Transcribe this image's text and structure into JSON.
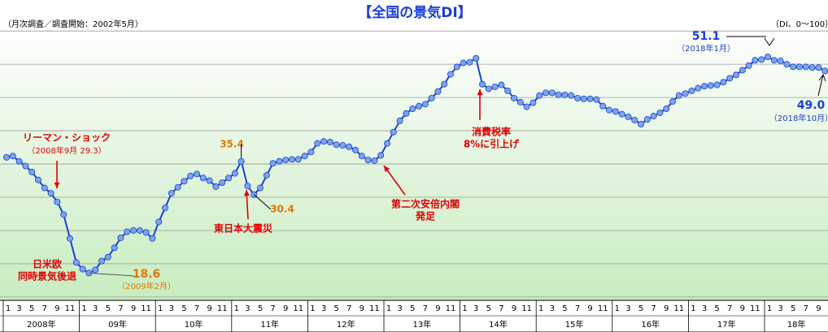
{
  "chart_data": {
    "type": "line",
    "title": "【全国の景気DI】",
    "subtitle": "（月次調査／調査開始：2002年5月）",
    "unit_note": "（DI、0～100）",
    "categories": [
      1,
      null,
      3,
      null,
      5,
      null,
      7,
      null,
      9,
      null,
      11,
      null,
      1,
      null,
      3,
      null,
      5,
      null,
      7,
      null,
      9,
      null,
      11,
      null,
      1,
      null,
      3,
      null,
      5,
      null,
      7,
      null,
      9,
      null,
      11,
      null,
      1,
      null,
      3,
      null,
      5,
      null,
      7,
      null,
      9,
      null,
      11,
      null,
      1,
      null,
      3,
      null,
      5,
      null,
      7,
      null,
      9,
      null,
      11,
      null,
      1,
      null,
      3,
      null,
      5,
      null,
      7,
      null,
      9,
      null,
      11,
      null,
      1,
      null,
      3,
      null,
      5,
      null,
      7,
      null,
      9,
      null,
      11,
      null,
      1,
      null,
      3,
      null,
      5,
      null,
      7,
      null,
      9,
      null,
      11,
      null,
      1,
      null,
      3,
      null,
      5,
      null,
      7,
      null,
      9,
      null,
      11,
      null,
      1,
      null,
      3,
      null,
      5,
      null,
      7,
      null,
      9,
      null,
      11,
      null,
      1,
      null,
      3,
      null,
      5,
      null,
      7,
      null,
      9,
      null
    ],
    "years": [
      "2008年",
      "09年",
      "10年",
      "11年",
      "12年",
      "13年",
      "14年",
      "15年",
      "16年",
      "17年",
      "18年"
    ],
    "values": [
      36.0,
      36.2,
      35.4,
      34.7,
      33.8,
      32.6,
      31.4,
      30.6,
      29.3,
      27.4,
      23.8,
      20.2,
      19.2,
      18.6,
      19.1,
      20.4,
      21.0,
      22.4,
      23.9,
      24.8,
      25.0,
      25.0,
      24.7,
      23.8,
      26.3,
      28.4,
      30.6,
      31.5,
      32.4,
      33.2,
      33.5,
      32.9,
      32.5,
      31.6,
      32.2,
      32.9,
      33.6,
      35.4,
      31.7,
      30.4,
      31.4,
      33.3,
      35.1,
      35.4,
      35.6,
      35.7,
      35.7,
      36.2,
      36.8,
      38.1,
      38.4,
      38.3,
      37.9,
      37.8,
      37.6,
      37.1,
      36.2,
      35.6,
      35.5,
      36.3,
      38.1,
      39.8,
      41.5,
      42.6,
      43.3,
      43.7,
      44.0,
      44.9,
      45.9,
      47.0,
      48.5,
      49.6,
      50.2,
      50.3,
      50.9,
      47.0,
      46.3,
      46.6,
      46.9,
      46.0,
      44.9,
      44.3,
      43.6,
      44.2,
      45.3,
      45.7,
      45.7,
      45.4,
      45.4,
      45.3,
      44.9,
      44.8,
      44.8,
      44.7,
      43.7,
      43.1,
      42.9,
      42.5,
      42.1,
      41.6,
      41.0,
      41.7,
      42.2,
      42.7,
      43.3,
      44.4,
      45.3,
      45.6,
      46.0,
      46.4,
      46.7,
      46.8,
      46.9,
      47.3,
      47.9,
      48.4,
      49.1,
      49.8,
      50.6,
      50.7,
      51.1,
      50.6,
      50.5,
      50.0,
      49.6,
      49.6,
      49.6,
      49.5,
      49.5,
      49.0
    ],
    "value_labels": [
      null,
      null,
      null,
      null,
      null,
      null,
      null,
      null,
      null,
      null,
      null,
      null,
      null,
      "18.6",
      null,
      null,
      null,
      null,
      null,
      null,
      null,
      null,
      null,
      null,
      null,
      null,
      null,
      null,
      null,
      null,
      null,
      null,
      null,
      null,
      null,
      null,
      null,
      "35.4",
      null,
      "30.4",
      null,
      null,
      null,
      null,
      null,
      null,
      null,
      null,
      null,
      null,
      null,
      null,
      null,
      null,
      null,
      null,
      null,
      null,
      null,
      null,
      null,
      null,
      null,
      null,
      null,
      null,
      null,
      null,
      null,
      null,
      null,
      null,
      null,
      null,
      null,
      null,
      null,
      null,
      null,
      null,
      null,
      null,
      null,
      null,
      null,
      null,
      null,
      null,
      null,
      null,
      null,
      null,
      null,
      null,
      null,
      null,
      null,
      null,
      null,
      null,
      null,
      null,
      null,
      null,
      null,
      null,
      null,
      null,
      null,
      null,
      null,
      null,
      null,
      null,
      null,
      null,
      null,
      null,
      null,
      null,
      "51.1",
      null,
      null,
      null,
      null,
      null,
      null,
      null,
      null,
      "49.0"
    ],
    "color": "#1a3fd8",
    "marker_color": "#7aa6e8",
    "ylim": [
      14.5,
      56
    ],
    "yticks": [
      15,
      20,
      25,
      30,
      35,
      40,
      45,
      50,
      55
    ],
    "grid": true,
    "annotations": [
      {
        "lines": [
          "リーマン・ショック"
        ],
        "color": "#e00000"
      },
      {
        "lines": [
          "（2008年9月 29.3）"
        ],
        "color": "#e00000"
      },
      {
        "lines": [
          "日米欧",
          "同時景気後退"
        ],
        "color": "#e00000"
      },
      {
        "lines": [
          "（2009年2月）"
        ],
        "color": "#e07800"
      },
      {
        "lines": [
          "東日本大震災"
        ],
        "color": "#e00000"
      },
      {
        "lines": [
          "第二次安倍内閣",
          "発足"
        ],
        "color": "#e00000"
      },
      {
        "lines": [
          "消費税率",
          "8%に引上げ"
        ],
        "color": "#e00000"
      },
      {
        "lines": [
          "（2018年1月）"
        ],
        "color": "#1a3fd8"
      },
      {
        "lines": [
          "（2018年10月）"
        ],
        "color": "#1a3fd8"
      }
    ]
  }
}
